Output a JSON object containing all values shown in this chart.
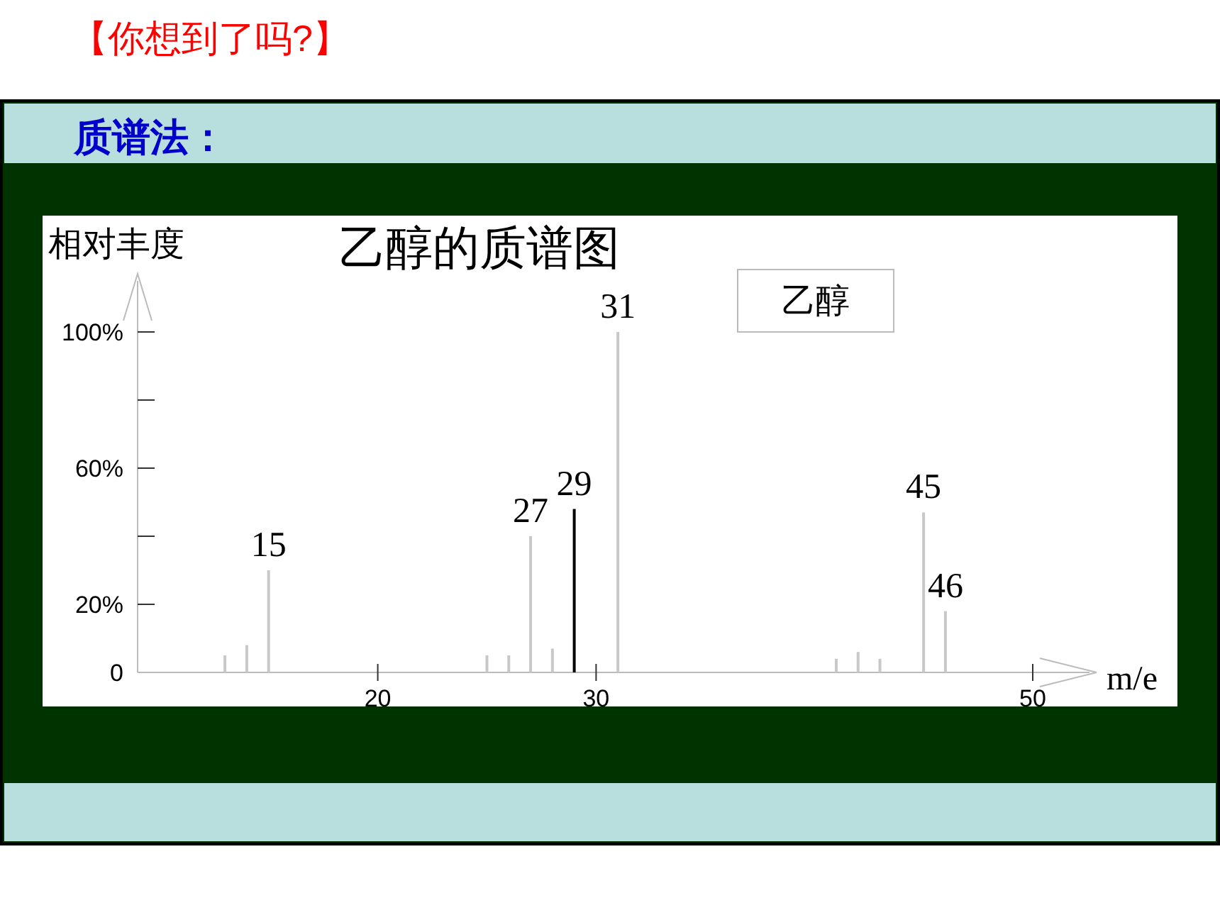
{
  "chart_data": {
    "type": "bar",
    "title": "乙醇的质谱图",
    "subtitle": "质谱法：",
    "xlabel": "m/e",
    "ylabel": "相对丰度",
    "x": [
      13,
      14,
      15,
      25,
      26,
      27,
      28,
      29,
      31,
      41,
      42,
      43,
      45,
      46
    ],
    "values": [
      5,
      8,
      30,
      5,
      5,
      40,
      7,
      48,
      100,
      4,
      6,
      4,
      47,
      18
    ],
    "colors": [
      "#c8c8c8",
      "#c8c8c8",
      "#c8c8c8",
      "#c8c8c8",
      "#c8c8c8",
      "#c8c8c8",
      "#c8c8c8",
      "#000000",
      "#c8c8c8",
      "#c8c8c8",
      "#c8c8c8",
      "#c8c8c8",
      "#c8c8c8",
      "#c8c8c8"
    ],
    "xlim": [
      9,
      50
    ],
    "xticks": [
      20,
      30,
      50
    ],
    "ylim": [
      0,
      115
    ],
    "yticks": [
      0,
      {
        "value": 20,
        "label": "20%"
      },
      {
        "value": 40,
        "label": null
      },
      {
        "value": 60,
        "label": "60%"
      },
      {
        "value": 80,
        "label": null
      },
      {
        "value": 100,
        "label": "100%"
      }
    ],
    "annotations": [
      "【你想到了吗?】",
      "乙醇",
      {
        "text": "15",
        "x": 15,
        "y": 30
      },
      {
        "text": "27",
        "x": 27,
        "y": 40
      },
      {
        "text": "29",
        "x": 29,
        "y": 48
      },
      {
        "text": "31",
        "x": 31,
        "y": 100
      },
      {
        "text": "45",
        "x": 45,
        "y": 47
      },
      {
        "text": "46",
        "x": 46,
        "y": 18
      }
    ]
  }
}
